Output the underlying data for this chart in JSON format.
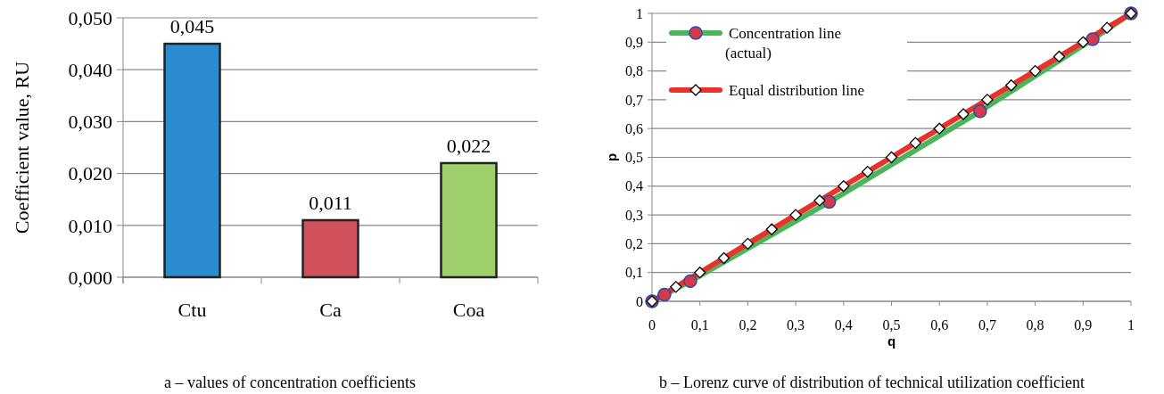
{
  "chart_data": [
    {
      "type": "bar",
      "categories": [
        "Ctu",
        "Ca",
        "Coa"
      ],
      "values": [
        0.045,
        0.011,
        0.022
      ],
      "colors": [
        "#2a8bd0",
        "#d0505c",
        "#9ecf6a"
      ],
      "value_labels": [
        "0,045",
        "0,011",
        "0,022"
      ],
      "ylabel": "Coefficient value, RU",
      "ylim": [
        0,
        0.05
      ],
      "yticks": [
        {
          "value": 0,
          "label": "0,000"
        },
        {
          "value": 0.01,
          "label": "0,010"
        },
        {
          "value": 0.02,
          "label": "0,020"
        },
        {
          "value": 0.03,
          "label": "0,030"
        },
        {
          "value": 0.04,
          "label": "0,040"
        },
        {
          "value": 0.05,
          "label": "0,050"
        }
      ],
      "grid": "y",
      "annotations": [
        "a – values of concentration coefficients"
      ]
    },
    {
      "type": "line",
      "xlabel": "q",
      "ylabel": "p",
      "xlim": [
        0,
        1
      ],
      "ylim": [
        0,
        1
      ],
      "xticks": [
        0,
        {
          "value": 0.1,
          "label": "0,1"
        },
        {
          "value": 0.2,
          "label": "0,2"
        },
        {
          "value": 0.3,
          "label": "0,3"
        },
        {
          "value": 0.4,
          "label": "0,4"
        },
        {
          "value": 0.5,
          "label": "0,5"
        },
        {
          "value": 0.6,
          "label": "0,6"
        },
        {
          "value": 0.7,
          "label": "0,7"
        },
        {
          "value": 0.8,
          "label": "0,8"
        },
        {
          "value": 0.9,
          "label": "0,9"
        },
        1
      ],
      "yticks": [
        0,
        {
          "value": 0.1,
          "label": "0,1"
        },
        {
          "value": 0.2,
          "label": "0,2"
        },
        {
          "value": 0.3,
          "label": "0,3"
        },
        {
          "value": 0.4,
          "label": "0,4"
        },
        {
          "value": 0.5,
          "label": "0,5"
        },
        {
          "value": 0.6,
          "label": "0,6"
        },
        {
          "value": 0.7,
          "label": "0,7"
        },
        {
          "value": 0.8,
          "label": "0,8"
        },
        {
          "value": 0.9,
          "label": "0,9"
        },
        1
      ],
      "grid": "y",
      "legend": "top left",
      "series": [
        {
          "name": "Concentration line (actual)",
          "color": "#4cb45a",
          "marker": "circle",
          "x": [
            0,
            0.026,
            0.08,
            0.37,
            0.685,
            0.92,
            1
          ],
          "values": [
            0,
            0.023,
            0.07,
            0.345,
            0.66,
            0.91,
            1
          ]
        },
        {
          "name": "Equal distribution line",
          "color": "#e8322a",
          "marker": "diamond",
          "x": [
            0,
            0.05,
            0.1,
            0.15,
            0.2,
            0.25,
            0.3,
            0.35,
            0.4,
            0.45,
            0.5,
            0.55,
            0.6,
            0.65,
            0.7,
            0.75,
            0.8,
            0.85,
            0.9,
            0.95,
            1
          ],
          "values": [
            0,
            0.05,
            0.1,
            0.15,
            0.2,
            0.25,
            0.3,
            0.35,
            0.4,
            0.45,
            0.5,
            0.55,
            0.6,
            0.65,
            0.7,
            0.75,
            0.8,
            0.85,
            0.9,
            0.95,
            1
          ]
        }
      ],
      "annotations": [
        "b – Lorenz curve of distribution of technical utilization coefficient"
      ]
    }
  ]
}
